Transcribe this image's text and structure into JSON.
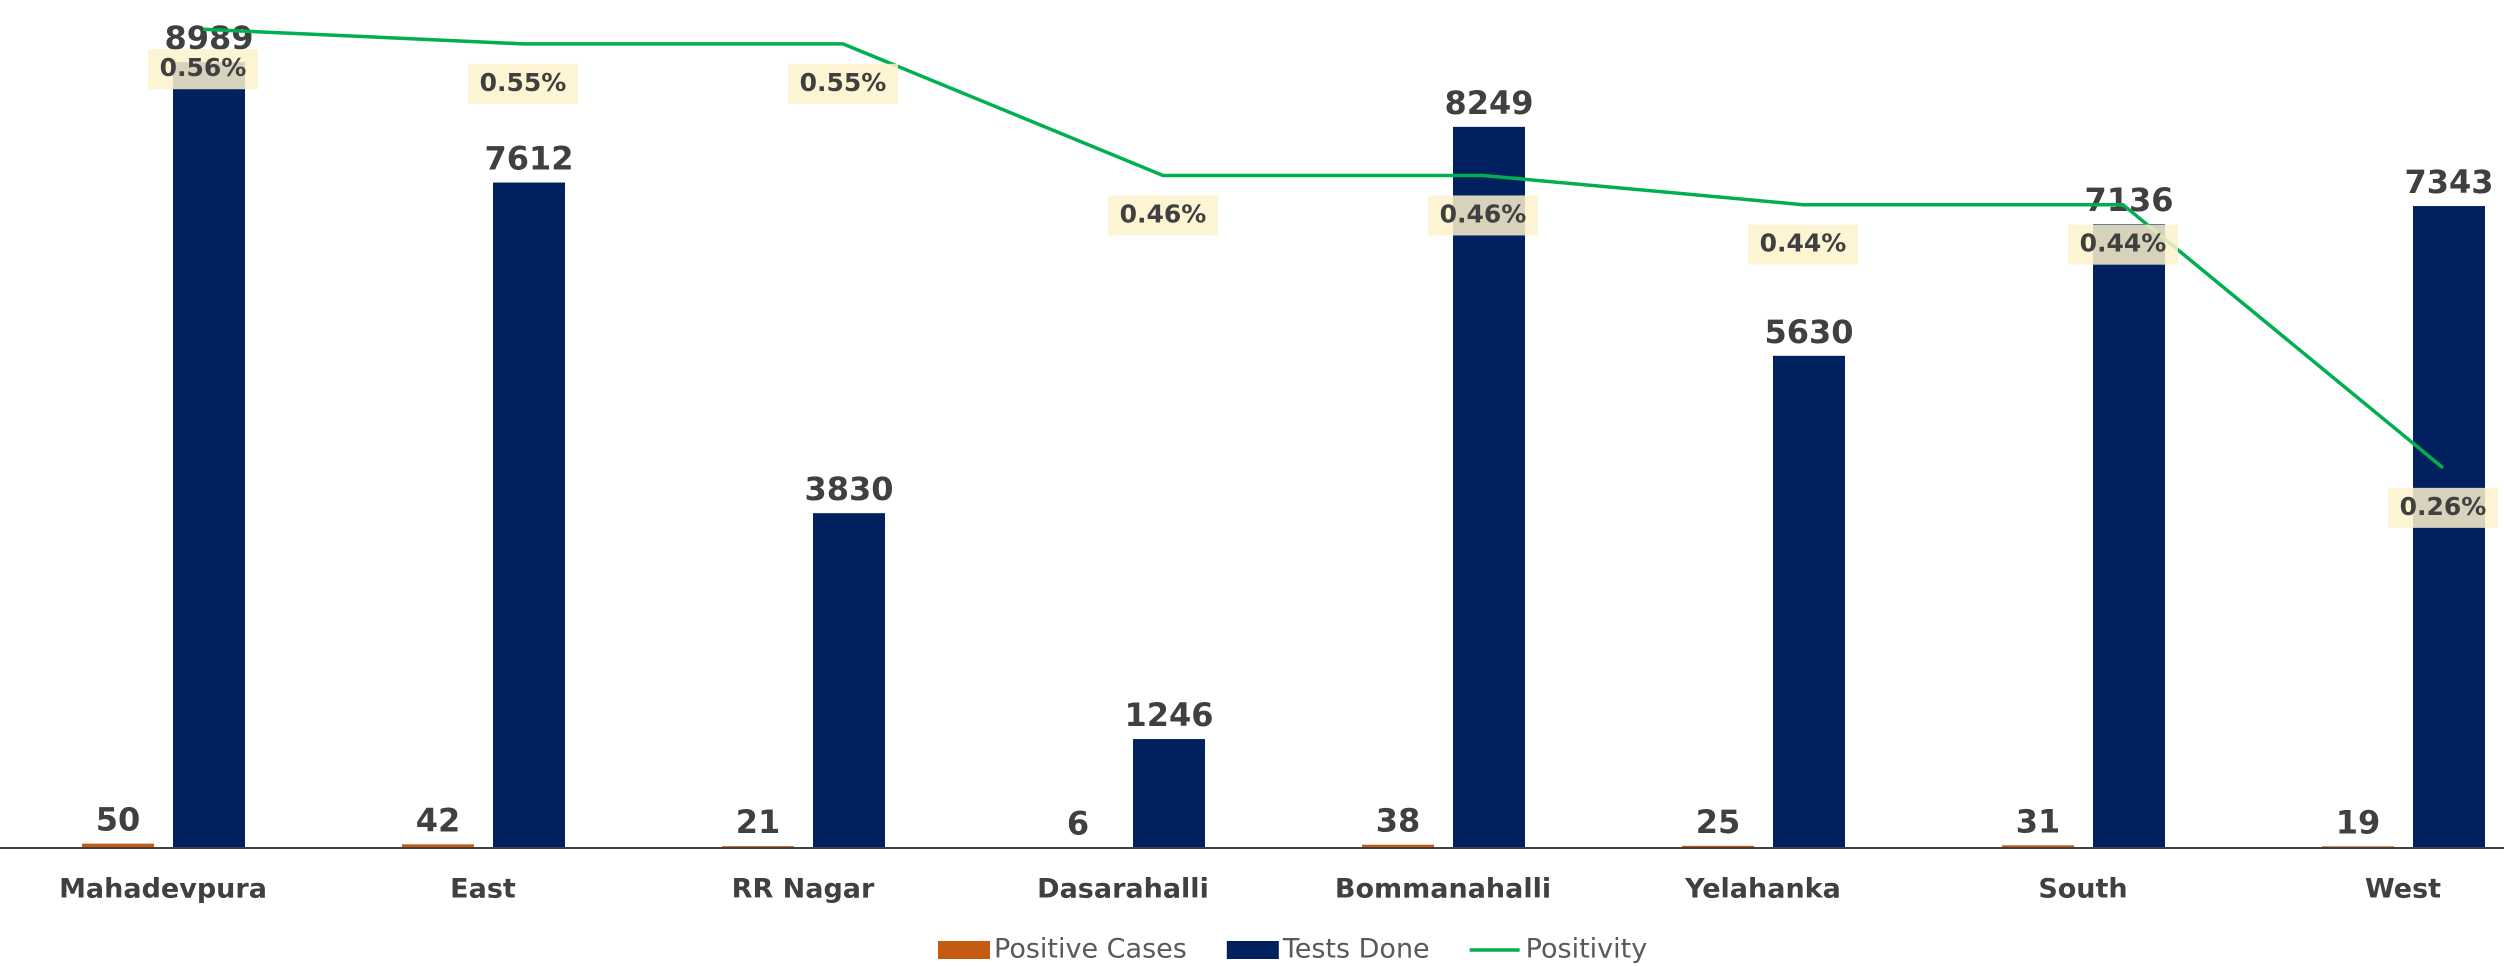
{
  "chart_data": {
    "type": "bar_line",
    "categories": [
      "Mahadevpura",
      "East",
      "RR Nagar",
      "Dasarahalli",
      "Bommanahalli",
      "Yelahanka",
      "South",
      "West"
    ],
    "series": [
      {
        "name": "Positive Cases",
        "color": "#c55a11",
        "values": [
          50,
          42,
          21,
          6,
          38,
          25,
          31,
          19
        ]
      },
      {
        "name": "Tests Done",
        "color": "#002060",
        "values": [
          8989,
          7612,
          3830,
          1246,
          8249,
          5630,
          7136,
          7343
        ]
      },
      {
        "name": "Positivity",
        "color": "#00b050",
        "axis": "y2",
        "values": [
          0.56,
          0.55,
          0.55,
          0.46,
          0.46,
          0.44,
          0.44,
          0.26
        ],
        "value_labels": [
          "0.56%",
          "0.55%",
          "0.55%",
          "0.46%",
          "0.46%",
          "0.44%",
          "0.44%",
          "0.26%"
        ]
      }
    ],
    "ylim": [
      0,
      9700
    ],
    "y2lim": [
      0,
      0.58
    ],
    "legend": "bottom"
  }
}
